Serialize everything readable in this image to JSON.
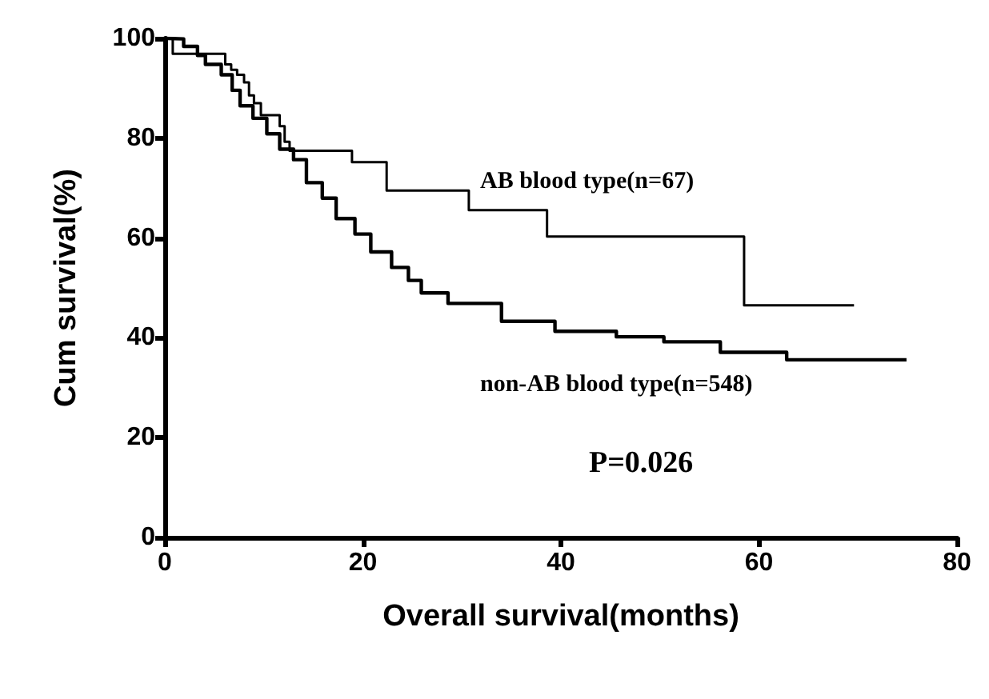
{
  "chart_data": {
    "type": "step",
    "xlabel": "Overall survival(months)",
    "ylabel": "Cum survival(%)",
    "xlim": [
      0,
      80
    ],
    "xticks": [
      0,
      20,
      40,
      60,
      80
    ],
    "ylim": [
      0,
      100
    ],
    "yticks": [
      0,
      20,
      40,
      60,
      80,
      100
    ],
    "grid": false,
    "legend": false,
    "marker": "none",
    "line_style": "solid",
    "series": [
      {
        "name": "AB blood type(n=67)",
        "color": "#000000",
        "x": [
          0,
          0.8,
          6.1,
          6.7,
          7.3,
          8.0,
          8.5,
          9.0,
          9.7,
          11.6,
          12.1,
          12.6,
          18.9,
          22.4,
          30.7,
          38.6,
          58.5,
          69.6
        ],
        "values": [
          100,
          96.9,
          94.8,
          93.7,
          92.7,
          91.2,
          88.6,
          87.0,
          84.6,
          82.4,
          79.3,
          77.5,
          75.2,
          69.5,
          65.6,
          60.3,
          46.5,
          46.5
        ]
      },
      {
        "name": "non-AB blood type(n=548)",
        "color": "#000000",
        "x": [
          0,
          0.3,
          1.9,
          3.3,
          4.1,
          5.7,
          6.8,
          7.6,
          8.9,
          10.3,
          11.6,
          13.0,
          14.3,
          15.9,
          17.3,
          19.2,
          20.8,
          22.9,
          24.6,
          25.9,
          28.6,
          34.0,
          39.4,
          45.6,
          50.4,
          56.1,
          62.8,
          74.9
        ],
        "values": [
          100,
          99.9,
          98.4,
          96.6,
          94.8,
          92.7,
          89.6,
          86.5,
          84.0,
          80.9,
          77.8,
          75.7,
          71.1,
          68.0,
          63.9,
          60.8,
          57.2,
          54.1,
          51.5,
          49.0,
          46.9,
          43.3,
          41.3,
          40.2,
          39.2,
          37.1,
          35.6,
          35.6
        ]
      }
    ],
    "annotations": [
      "P=0.026"
    ]
  }
}
